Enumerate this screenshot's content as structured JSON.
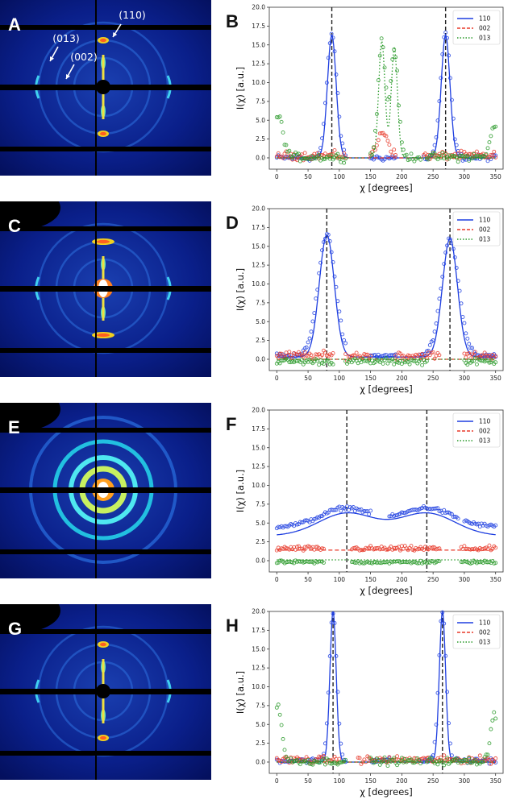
{
  "panels": {
    "xray": [
      {
        "letter": "A",
        "annotations": [
          "(110)",
          "(013)",
          "(002)"
        ],
        "pattern": "oriented-arcs"
      },
      {
        "letter": "C",
        "annotations": [],
        "pattern": "oriented-arcs-strong"
      },
      {
        "letter": "E",
        "annotations": [],
        "pattern": "isotropic-rings"
      },
      {
        "letter": "G",
        "annotations": [],
        "pattern": "oriented-arcs"
      }
    ]
  },
  "colors": {
    "s110": "#1f3fe0",
    "s002": "#e83a2a",
    "s013": "#2a9a2a",
    "background_blue": "#04105e",
    "guide": "#222222"
  },
  "chart_data": [
    {
      "type": "line",
      "letter": "B",
      "xlabel": "χ [degrees]",
      "ylabel": "I(χ) [a.u.]",
      "xlim": [
        -12,
        362
      ],
      "ylim": [
        -1.5,
        20
      ],
      "xticks": [
        0,
        50,
        100,
        150,
        200,
        250,
        300,
        350
      ],
      "yticks": [
        0.0,
        2.5,
        5.0,
        7.5,
        10.0,
        12.5,
        15.0,
        17.5,
        20.0
      ],
      "ytick_labels": [
        "0.0",
        "2.5",
        "5.0",
        "7.5",
        "10.0",
        "12.5",
        "15.0",
        "17.5",
        "20.0"
      ],
      "legend": [
        "110",
        "002",
        "013"
      ],
      "legend_position": "top-right",
      "vlines": [
        88,
        270
      ],
      "series": [
        {
          "name": "110",
          "baseline": 0.0,
          "peaks": [
            [
              88,
              16.5,
              8
            ],
            [
              270,
              16.5,
              8
            ]
          ],
          "noise": 0.6,
          "gaps": [
            [
              110,
              150
            ],
            [
              190,
              235
            ]
          ],
          "fit_peaks": [
            [
              88,
              16.3,
              7
            ],
            [
              270,
              16.3,
              7
            ]
          ],
          "fit_baseline": 0.0
        },
        {
          "name": "002",
          "baseline": 0.3,
          "peaks": [
            [
              170,
              3.5,
              8
            ]
          ],
          "noise": 0.8,
          "gaps": [
            [
              110,
              150
            ],
            [
              190,
              235
            ]
          ],
          "fit_peaks": [],
          "fit_baseline": 0.0
        },
        {
          "name": "013",
          "baseline": 0.1,
          "peaks": [
            [
              168,
              15.5,
              6
            ],
            [
              188,
              14.5,
              6
            ],
            [
              2,
              5.5,
              8
            ],
            [
              348,
              4.5,
              6
            ]
          ],
          "noise": 0.8,
          "gaps": [
            [
              110,
              150
            ],
            [
              230,
              240
            ]
          ],
          "fit_peaks": [
            [
              168,
              15.5,
              5
            ],
            [
              188,
              14.5,
              5
            ]
          ],
          "fit_baseline": 0.0
        }
      ]
    },
    {
      "type": "line",
      "letter": "D",
      "xlabel": "χ [degrees]",
      "ylabel": "I(χ) [a.u.]",
      "xlim": [
        -12,
        362
      ],
      "ylim": [
        -1.5,
        20
      ],
      "xticks": [
        0,
        50,
        100,
        150,
        200,
        250,
        300,
        350
      ],
      "yticks": [
        0.0,
        2.5,
        5.0,
        7.5,
        10.0,
        12.5,
        15.0,
        17.5,
        20.0
      ],
      "ytick_labels": [
        "0.0",
        "2.5",
        "5.0",
        "7.5",
        "10.0",
        "12.5",
        "15.0",
        "17.5",
        "20.0"
      ],
      "legend": [
        "110",
        "002",
        "013"
      ],
      "legend_position": "top-right",
      "vlines": [
        80,
        277
      ],
      "series": [
        {
          "name": "110",
          "baseline": 0.5,
          "peaks": [
            [
              80,
              16.5,
              14
            ],
            [
              277,
              16.0,
              14
            ]
          ],
          "noise": 0.5,
          "gaps": [
            [
              110,
              150
            ],
            [
              190,
              230
            ]
          ],
          "fit_peaks": [
            [
              80,
              16.5,
              12
            ],
            [
              277,
              16.0,
              12
            ]
          ],
          "fit_baseline": 0.3
        },
        {
          "name": "002",
          "baseline": 0.5,
          "peaks": [],
          "noise": 0.8,
          "gaps": [
            [
              90,
              110
            ],
            [
              150,
              190
            ],
            [
              260,
              300
            ]
          ],
          "fit_peaks": [],
          "fit_baseline": 0.0
        },
        {
          "name": "013",
          "baseline": -0.3,
          "peaks": [],
          "noise": 0.6,
          "gaps": [
            [
              90,
              110
            ],
            [
              240,
              300
            ]
          ],
          "fit_peaks": [],
          "fit_baseline": 0.0
        }
      ]
    },
    {
      "type": "line",
      "letter": "F",
      "xlabel": "χ [degrees]",
      "ylabel": "I(χ) [a.u.]",
      "xlim": [
        -12,
        362
      ],
      "ylim": [
        -1.5,
        20
      ],
      "xticks": [
        0,
        50,
        100,
        150,
        200,
        250,
        300,
        350
      ],
      "yticks": [
        0.0,
        2.5,
        5.0,
        7.5,
        10.0,
        12.5,
        15.0,
        17.5,
        20.0
      ],
      "ytick_labels": [
        "0.0",
        "2.5",
        "5.0",
        "7.5",
        "10.0",
        "12.5",
        "15.0",
        "17.5",
        "20.0"
      ],
      "legend": [
        "110",
        "002",
        "013"
      ],
      "legend_position": "top-right",
      "vlines": [
        112,
        240
      ],
      "series": [
        {
          "name": "110",
          "baseline": 4.5,
          "peaks": [
            [
              112,
              7.0,
              40
            ],
            [
              240,
              7.0,
              40
            ]
          ],
          "noise": 0.4,
          "gaps": [
            [
              150,
              180
            ],
            [
              290,
              300
            ]
          ],
          "fit_peaks": [
            [
              112,
              6.3,
              45
            ],
            [
              240,
              6.3,
              45
            ]
          ],
          "fit_baseline": 3.3
        },
        {
          "name": "002",
          "baseline": 1.6,
          "peaks": [],
          "noise": 0.5,
          "gaps": [
            [
              75,
              120
            ],
            [
              260,
              295
            ]
          ],
          "fit_peaks": [],
          "fit_baseline": 1.4
        },
        {
          "name": "013",
          "baseline": -0.2,
          "peaks": [],
          "noise": 0.3,
          "gaps": [
            [
              75,
              120
            ],
            [
              260,
              295
            ]
          ],
          "fit_peaks": [],
          "fit_baseline": 0.1
        }
      ]
    },
    {
      "type": "line",
      "letter": "H",
      "xlabel": "χ [degrees]",
      "ylabel": "I(χ) [a.u.]",
      "xlim": [
        -12,
        362
      ],
      "ylim": [
        -1.5,
        20
      ],
      "xticks": [
        0,
        50,
        100,
        150,
        200,
        250,
        300,
        350
      ],
      "yticks": [
        0.0,
        2.5,
        5.0,
        7.5,
        10.0,
        12.5,
        15.0,
        17.5,
        20.0
      ],
      "ytick_labels": [
        "0.0",
        "2.5",
        "5.0",
        "7.5",
        "10.0",
        "12.5",
        "15.0",
        "17.5",
        "20.0"
      ],
      "legend": [
        "110",
        "002",
        "013"
      ],
      "legend_position": "top-right",
      "vlines": [
        90,
        265
      ],
      "series": [
        {
          "name": "110",
          "baseline": 0.2,
          "peaks": [
            [
              90,
              20.0,
              6
            ],
            [
              265,
              20.0,
              6
            ]
          ],
          "noise": 0.5,
          "gaps": [
            [
              110,
              150
            ],
            [
              180,
              230
            ]
          ],
          "fit_peaks": [
            [
              90,
              20.0,
              5
            ],
            [
              265,
              20.0,
              5
            ]
          ],
          "fit_baseline": 0.0
        },
        {
          "name": "002",
          "baseline": 0.3,
          "peaks": [],
          "noise": 0.7,
          "gaps": [
            [
              100,
              130
            ]
          ],
          "fit_peaks": [],
          "fit_baseline": 0.0
        },
        {
          "name": "013",
          "baseline": 0.1,
          "peaks": [
            [
              2,
              7.5,
              6
            ],
            [
              348,
              6.5,
              6
            ]
          ],
          "noise": 0.7,
          "gaps": [
            [
              110,
              150
            ],
            [
              230,
              240
            ]
          ],
          "fit_peaks": [],
          "fit_baseline": 0.0
        }
      ]
    }
  ]
}
